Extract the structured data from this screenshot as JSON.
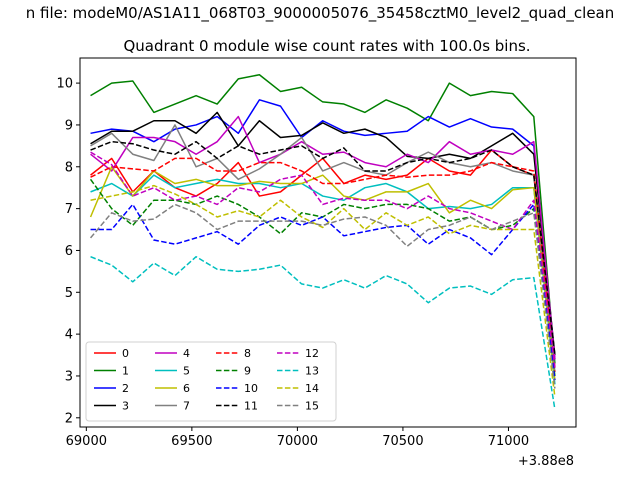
{
  "figure": {
    "suptitle": "n file: modeM0/AS1A11_068T03_9000005076_35458cztM0_level2_quad_clean",
    "offset_label": "+3.88e8"
  },
  "chart_data": {
    "type": "line",
    "title": "Quadrant 0 module wise count rates with 100.0s bins.",
    "xlabel": "",
    "ylabel": "",
    "xlim": [
      68970,
      71320
    ],
    "ylim": [
      1.78,
      10.6
    ],
    "x_ticks": [
      69000,
      69500,
      70000,
      70500,
      71000
    ],
    "y_ticks": [
      2,
      3,
      4,
      5,
      6,
      7,
      8,
      9,
      10
    ],
    "grid": false,
    "legend": {
      "placement": "lower-left",
      "columns": 4
    },
    "x": [
      69020,
      69120,
      69220,
      69320,
      69420,
      69520,
      69620,
      69720,
      69820,
      69920,
      70020,
      70120,
      70220,
      70320,
      70420,
      70520,
      70620,
      70720,
      70820,
      70920,
      71020,
      71120,
      71220
    ],
    "series": [
      {
        "name": "0",
        "color": "#ff0000",
        "dash": "solid",
        "values": [
          7.8,
          8.2,
          7.4,
          7.9,
          7.5,
          7.3,
          7.6,
          8.1,
          7.3,
          7.4,
          7.8,
          8.2,
          7.6,
          7.8,
          7.7,
          7.8,
          8.2,
          7.9,
          7.8,
          8.4,
          8.0,
          7.8,
          3.2
        ]
      },
      {
        "name": "1",
        "color": "#008000",
        "dash": "solid",
        "values": [
          9.7,
          10.0,
          10.05,
          9.3,
          9.5,
          9.7,
          9.5,
          10.1,
          10.2,
          9.8,
          9.9,
          9.55,
          9.5,
          9.3,
          9.6,
          9.4,
          9.1,
          10.0,
          9.7,
          9.8,
          9.75,
          9.2,
          3.3
        ]
      },
      {
        "name": "2",
        "color": "#0000ff",
        "dash": "solid",
        "values": [
          8.8,
          8.9,
          8.85,
          8.6,
          8.9,
          9.0,
          9.2,
          8.8,
          9.6,
          9.45,
          8.7,
          9.1,
          8.85,
          8.75,
          8.8,
          8.85,
          9.2,
          8.95,
          9.15,
          8.95,
          8.9,
          8.5,
          3.4
        ]
      },
      {
        "name": "3",
        "color": "#000000",
        "dash": "solid",
        "values": [
          8.55,
          8.85,
          8.85,
          9.1,
          9.1,
          8.8,
          9.3,
          8.5,
          9.1,
          8.7,
          8.75,
          9.05,
          8.8,
          8.9,
          8.7,
          8.25,
          8.2,
          8.3,
          8.2,
          8.5,
          8.8,
          8.3,
          3.5
        ]
      },
      {
        "name": "4",
        "color": "#c000c0",
        "dash": "solid",
        "values": [
          8.3,
          7.9,
          8.7,
          8.7,
          8.6,
          8.3,
          8.6,
          9.2,
          8.1,
          8.3,
          8.6,
          8.3,
          8.35,
          8.1,
          8.0,
          8.3,
          8.1,
          8.6,
          8.3,
          8.4,
          8.3,
          8.6,
          3.4
        ]
      },
      {
        "name": "5",
        "color": "#00bfbf",
        "dash": "solid",
        "values": [
          7.4,
          7.6,
          7.3,
          7.8,
          7.5,
          7.6,
          7.7,
          7.6,
          7.6,
          7.5,
          7.6,
          7.3,
          7.2,
          7.5,
          7.6,
          7.4,
          7.0,
          7.05,
          7.0,
          7.1,
          7.5,
          7.5,
          2.8
        ]
      },
      {
        "name": "6",
        "color": "#bfbf00",
        "dash": "solid",
        "values": [
          6.8,
          8.0,
          7.3,
          7.9,
          7.6,
          7.7,
          7.55,
          7.55,
          7.65,
          7.6,
          7.6,
          7.8,
          7.3,
          7.2,
          7.4,
          7.4,
          7.6,
          6.9,
          7.2,
          7.0,
          7.45,
          7.5,
          2.9
        ]
      },
      {
        "name": "7",
        "color": "#808080",
        "dash": "solid",
        "values": [
          8.5,
          8.8,
          8.3,
          8.15,
          9.0,
          8.0,
          8.2,
          7.7,
          7.95,
          8.3,
          8.7,
          7.9,
          8.1,
          7.9,
          7.8,
          8.1,
          8.35,
          8.1,
          8.0,
          8.1,
          7.9,
          7.8,
          3.1
        ]
      },
      {
        "name": "8",
        "color": "#ff0000",
        "dash": "dashed",
        "values": [
          7.75,
          8.0,
          7.95,
          7.9,
          8.2,
          8.2,
          7.9,
          7.9,
          8.1,
          8.1,
          7.9,
          7.6,
          7.6,
          7.7,
          7.8,
          7.75,
          7.8,
          7.8,
          7.9,
          8.1,
          8.0,
          7.9,
          3.1
        ]
      },
      {
        "name": "9",
        "color": "#008000",
        "dash": "dashed",
        "values": [
          7.7,
          7.0,
          6.6,
          7.2,
          7.2,
          7.1,
          7.3,
          7.1,
          6.8,
          6.4,
          6.9,
          6.8,
          7.1,
          7.0,
          7.1,
          7.1,
          7.0,
          6.7,
          6.8,
          6.5,
          6.6,
          7.0,
          3.0
        ]
      },
      {
        "name": "10",
        "color": "#0000ff",
        "dash": "dashed",
        "values": [
          6.5,
          6.5,
          7.1,
          6.25,
          6.15,
          6.3,
          6.45,
          6.15,
          6.6,
          6.8,
          6.6,
          6.8,
          6.35,
          6.45,
          6.55,
          6.6,
          6.15,
          6.5,
          6.3,
          5.9,
          6.5,
          7.1,
          2.9
        ]
      },
      {
        "name": "11",
        "color": "#000000",
        "dash": "dashed",
        "values": [
          8.4,
          8.6,
          8.55,
          8.4,
          8.3,
          8.6,
          8.2,
          8.5,
          8.3,
          8.4,
          8.5,
          8.2,
          8.45,
          7.9,
          7.9,
          8.1,
          8.2,
          8.1,
          8.2,
          8.4,
          8.0,
          7.8,
          3.5
        ]
      },
      {
        "name": "12",
        "color": "#c000c0",
        "dash": "dashed",
        "values": [
          8.35,
          8.05,
          7.3,
          7.5,
          7.2,
          7.3,
          7.1,
          7.5,
          7.4,
          7.7,
          7.8,
          7.1,
          7.25,
          7.2,
          7.2,
          7.0,
          7.3,
          7.0,
          6.9,
          6.7,
          6.5,
          7.2,
          3.2
        ]
      },
      {
        "name": "13",
        "color": "#00bfbf",
        "dash": "dashed",
        "values": [
          5.85,
          5.65,
          5.25,
          5.7,
          5.4,
          5.85,
          5.55,
          5.5,
          5.55,
          5.65,
          5.2,
          5.1,
          5.3,
          5.1,
          5.4,
          5.2,
          4.75,
          5.1,
          5.15,
          4.95,
          5.3,
          5.35,
          2.2
        ]
      },
      {
        "name": "14",
        "color": "#bfbf00",
        "dash": "dashed",
        "values": [
          7.2,
          7.3,
          7.4,
          7.55,
          7.35,
          7.1,
          6.8,
          6.95,
          6.8,
          7.2,
          6.8,
          6.55,
          7.0,
          6.5,
          6.9,
          6.6,
          6.8,
          6.4,
          6.6,
          6.5,
          6.5,
          6.5,
          2.5
        ]
      },
      {
        "name": "15",
        "color": "#808080",
        "dash": "dashed",
        "values": [
          6.3,
          6.9,
          6.7,
          6.75,
          7.1,
          6.9,
          6.5,
          6.7,
          6.7,
          6.7,
          6.7,
          6.6,
          6.75,
          6.8,
          6.6,
          6.1,
          6.5,
          6.6,
          6.8,
          6.5,
          6.7,
          6.9,
          2.7
        ]
      }
    ]
  }
}
